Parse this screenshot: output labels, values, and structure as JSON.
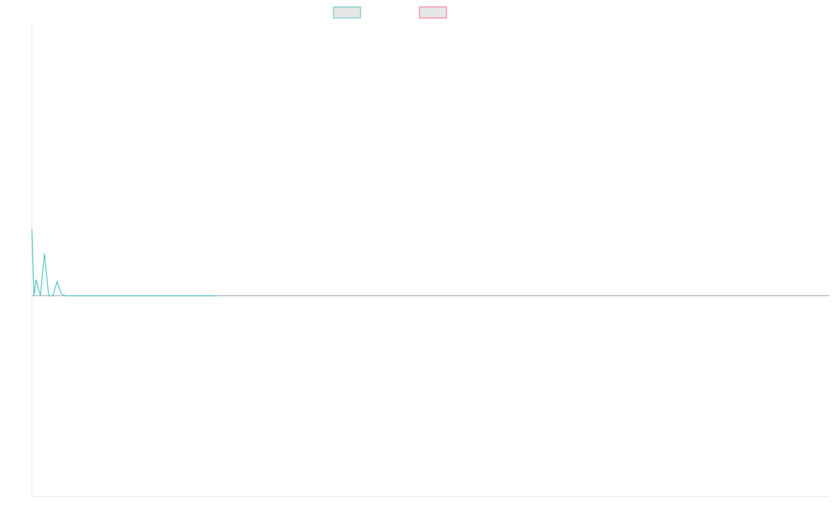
{
  "chart_data": {
    "type": "line",
    "title": "",
    "xlabel": "",
    "ylabel": "",
    "grid": false,
    "legend": {
      "placement": "top-center",
      "entries": [
        {
          "label": "",
          "color": "#4bc0c0"
        },
        {
          "label": "",
          "color": "#ff6384"
        }
      ]
    },
    "x_range": [
      0,
      190
    ],
    "ylim": [
      -1.0,
      1.35
    ],
    "baseline": 0,
    "series": [
      {
        "color": "#4bc0c0",
        "points": [
          [
            0,
            0.33
          ],
          [
            0.5,
            0
          ],
          [
            1,
            0.08
          ],
          [
            2,
            0
          ],
          [
            3,
            0.21
          ],
          [
            4,
            0
          ],
          [
            5,
            0
          ],
          [
            6,
            0.07
          ],
          [
            7,
            0.01
          ],
          [
            8,
            0
          ],
          [
            9,
            0
          ],
          [
            10,
            0
          ],
          [
            11,
            0
          ],
          [
            12,
            0
          ],
          [
            13,
            0
          ],
          [
            14,
            0
          ],
          [
            15,
            0
          ],
          [
            16,
            0
          ],
          [
            17,
            0
          ],
          [
            18,
            0
          ],
          [
            19,
            0
          ],
          [
            20,
            0
          ],
          [
            21,
            0
          ],
          [
            22,
            0
          ],
          [
            23,
            0
          ],
          [
            24,
            0
          ],
          [
            25,
            0
          ],
          [
            26,
            0
          ],
          [
            27,
            0
          ],
          [
            28,
            0
          ],
          [
            29,
            0
          ],
          [
            30,
            0
          ],
          [
            31,
            0
          ],
          [
            32,
            0
          ],
          [
            33,
            0
          ],
          [
            34,
            0
          ],
          [
            35,
            0
          ],
          [
            36,
            0
          ],
          [
            37,
            0
          ],
          [
            38,
            0
          ],
          [
            39,
            0
          ],
          [
            40,
            0
          ],
          [
            41,
            0
          ],
          [
            42,
            0
          ],
          [
            43,
            0
          ],
          [
            44,
            0
          ]
        ]
      },
      {
        "color": "#ff6384",
        "points": []
      }
    ]
  }
}
